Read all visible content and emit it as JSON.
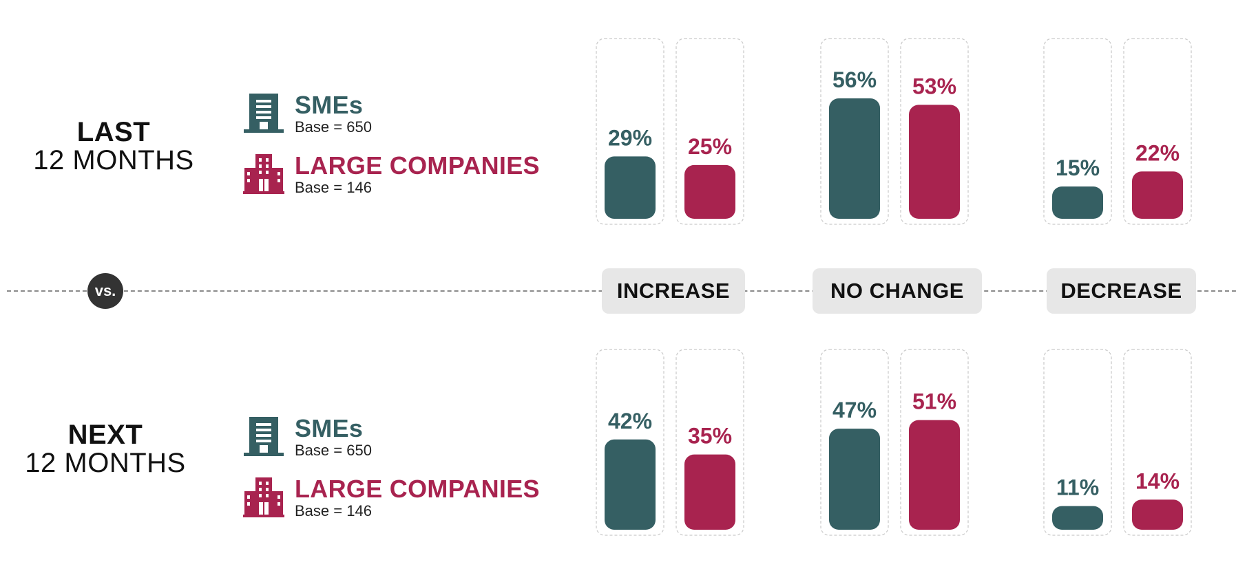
{
  "colors": {
    "sme": "#355f63",
    "large": "#a8234f",
    "card_border": "#c9c9c9",
    "label_bg": "#e7e7e7"
  },
  "periods": [
    {
      "bold": "LAST",
      "light": "12 MONTHS"
    },
    {
      "bold": "NEXT",
      "light": "12 MONTHS"
    }
  ],
  "legend": {
    "sme": {
      "name": "SMEs",
      "base": "Base = 650",
      "icon": "office-building-icon"
    },
    "large": {
      "name": "LARGE COMPANIES",
      "base": "Base = 146",
      "icon": "large-company-building-icon"
    }
  },
  "vs_label": "vs.",
  "chart_data": {
    "type": "bar",
    "categories": [
      "INCREASE",
      "NO CHANGE",
      "DECREASE"
    ],
    "unit": "%",
    "panels": [
      {
        "period": "LAST 12 MONTHS",
        "series": [
          {
            "name": "SMEs",
            "values": [
              29,
              56,
              15
            ]
          },
          {
            "name": "LARGE COMPANIES",
            "values": [
              25,
              53,
              22
            ]
          }
        ]
      },
      {
        "period": "NEXT 12 MONTHS",
        "series": [
          {
            "name": "SMEs",
            "values": [
              42,
              47,
              11
            ]
          },
          {
            "name": "LARGE COMPANIES",
            "values": [
              35,
              51,
              14
            ]
          }
        ]
      }
    ]
  }
}
